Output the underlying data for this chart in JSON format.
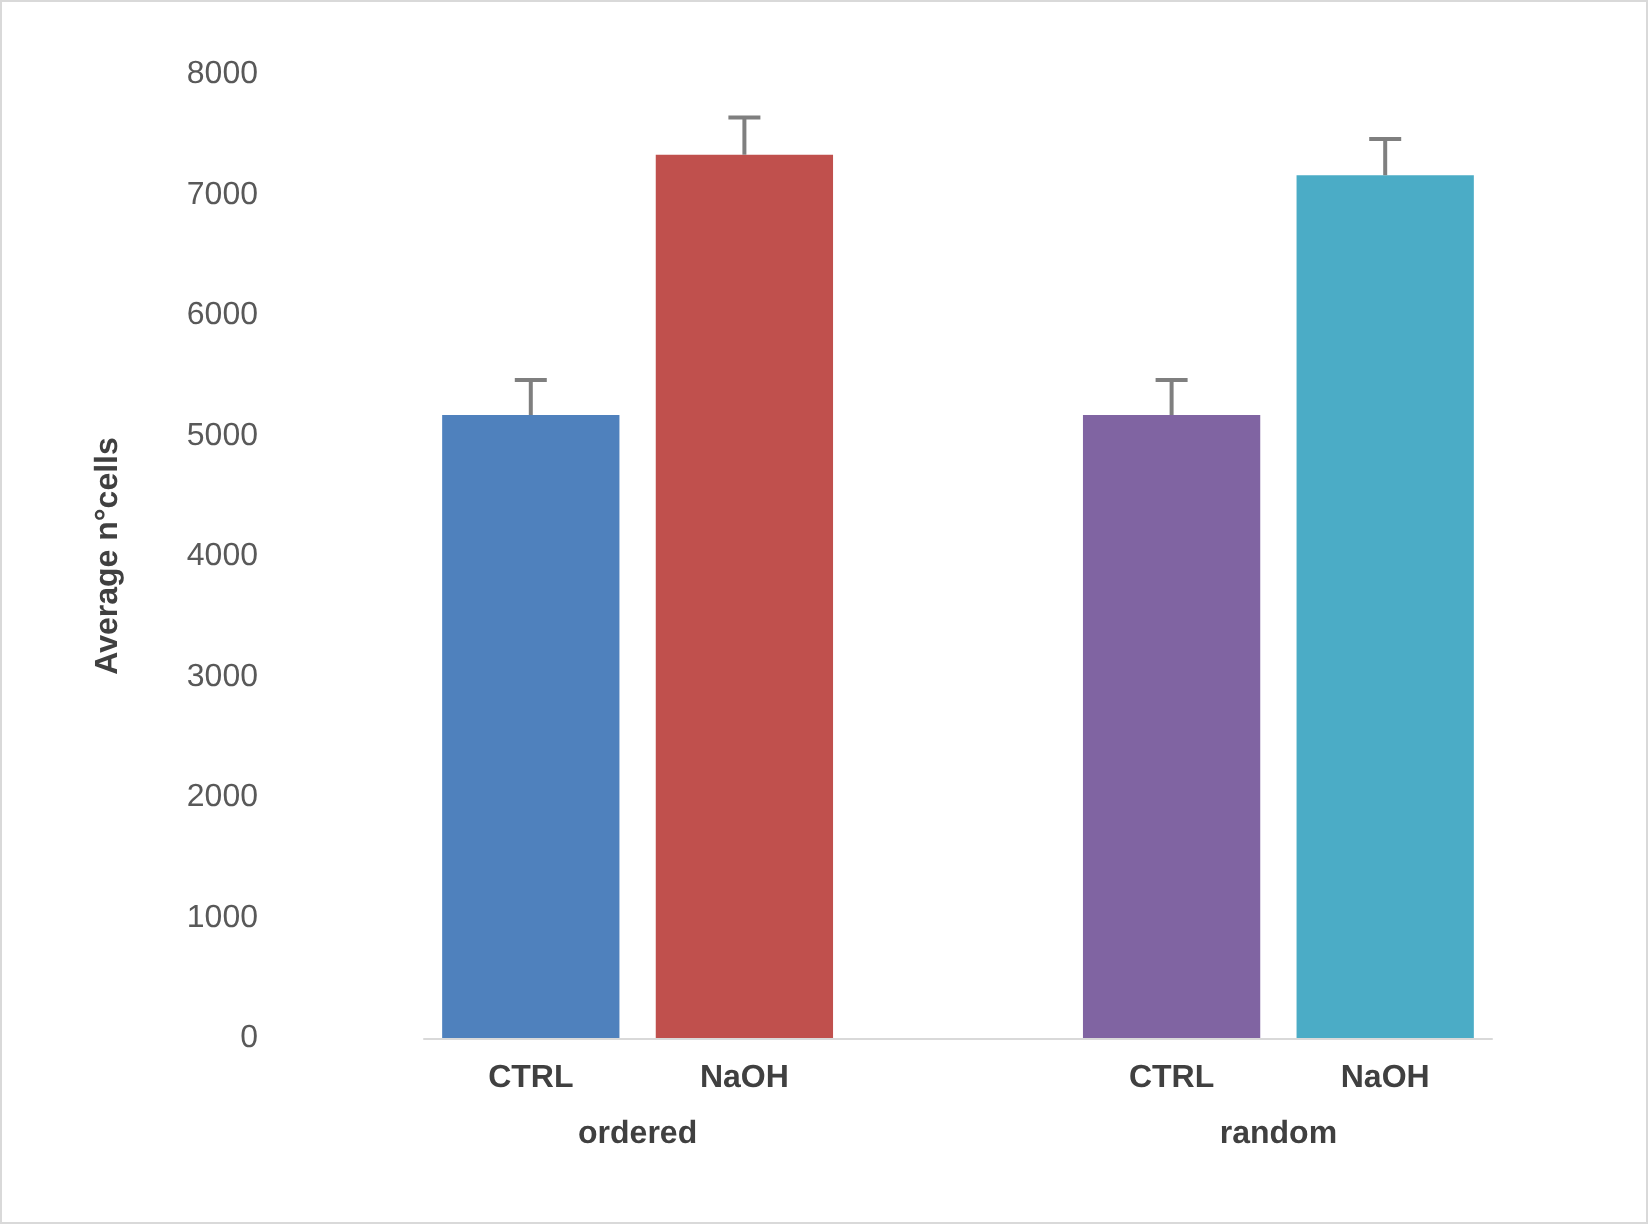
{
  "chart_data": {
    "type": "bar",
    "ylabel": "Average n°cells",
    "categories": [
      "CTRL",
      "NaOH",
      null,
      "CTRL",
      "NaOH"
    ],
    "values": [
      5170,
      7330,
      null,
      5170,
      7160
    ],
    "colors": [
      "#4f81bd",
      "#c0504d",
      null,
      "#8064a2",
      "#4bacc6"
    ],
    "errors": [
      [
        5170,
        5460
      ],
      [
        7330,
        7640
      ],
      null,
      [
        5170,
        5460
      ],
      [
        7160,
        7460
      ]
    ],
    "annotations": [
      "ordered",
      "random"
    ],
    "ylim": [
      0,
      8000
    ],
    "yticks": [
      0,
      1000,
      2000,
      3000,
      4000,
      5000,
      6000,
      7000,
      8000
    ]
  }
}
